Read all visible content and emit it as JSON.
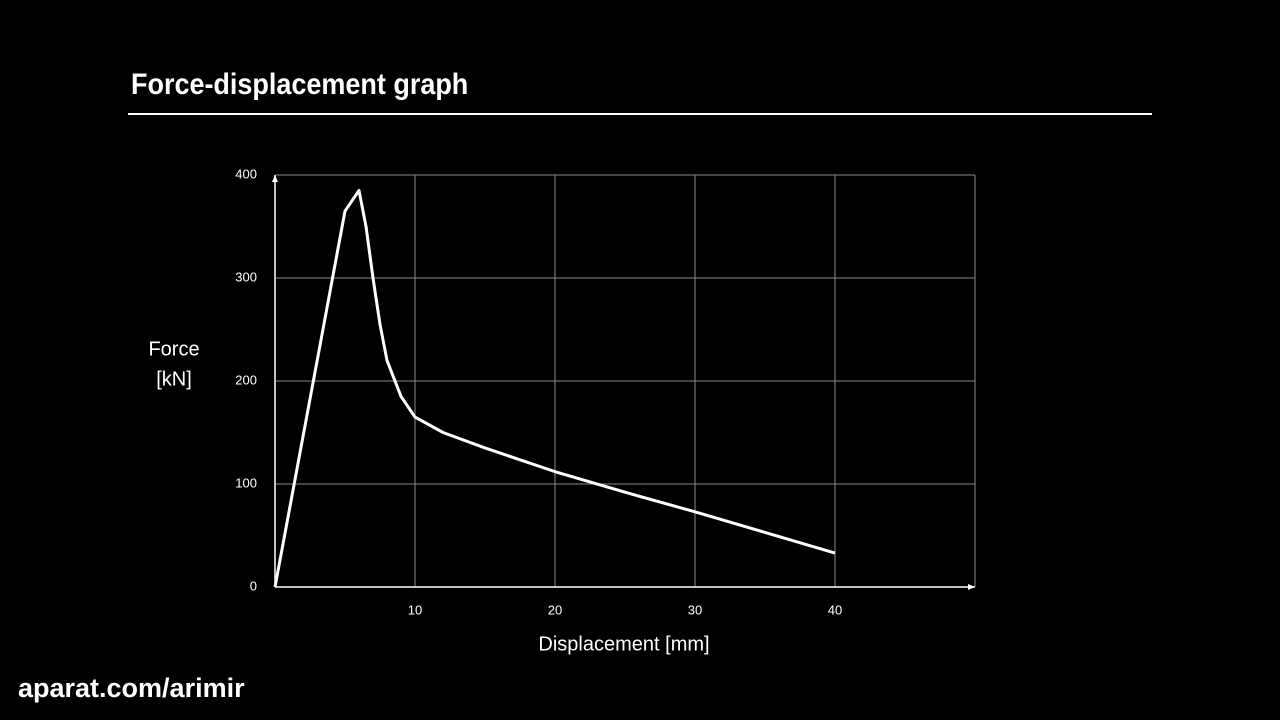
{
  "chart_data": {
    "type": "line",
    "title": "Force-displacement graph",
    "x_label": "Displacement [mm]",
    "y_label": [
      "Force",
      "[kN]"
    ],
    "watermark": "aparat.com/arimir",
    "series": [
      {
        "name": "Force",
        "color": "#ffffff",
        "x": [
          0,
          5,
          6,
          6.5,
          7,
          7.5,
          8,
          9,
          10,
          12,
          15,
          20,
          25,
          30,
          35,
          40
        ],
        "values": [
          0,
          365,
          385,
          350,
          300,
          255,
          220,
          185,
          165,
          150,
          135,
          112,
          92,
          73,
          53,
          33
        ]
      }
    ],
    "xlim": [
      0,
      50
    ],
    "xticks": [
      10,
      20,
      30,
      40
    ],
    "ylim": [
      0,
      400
    ],
    "yticks": [
      0,
      100,
      200,
      300,
      400
    ],
    "grid": true
  }
}
